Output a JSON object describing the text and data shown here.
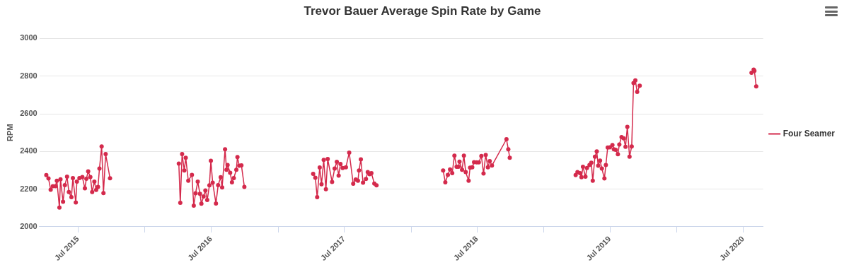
{
  "chart_data": {
    "type": "line",
    "title": "Trevor Bauer Average Spin Rate by Game",
    "ylabel": "RPM",
    "x": [
      "2015-04-05",
      "2015-04-11",
      "2015-04-17",
      "2015-04-23",
      "2015-04-30",
      "2015-05-04",
      "2015-05-11",
      "2015-05-14",
      "2015-05-21",
      "2015-05-26",
      "2015-06-01",
      "2015-06-06",
      "2015-06-13",
      "2015-06-17",
      "2015-06-25",
      "2015-06-28",
      "2015-07-05",
      "2015-07-13",
      "2015-07-20",
      "2015-07-24",
      "2015-07-29",
      "2015-08-04",
      "2015-08-09",
      "2015-08-15",
      "2015-08-20",
      "2015-08-25",
      "2015-08-29",
      "2015-09-04",
      "2015-09-09",
      "2015-09-15",
      "2015-09-27",
      "2016-01-01",
      "2016-04-03",
      "2016-04-07",
      "2016-04-12",
      "2016-04-18",
      "2016-04-22",
      "2016-04-29",
      "2016-05-09",
      "2016-05-14",
      "2016-05-19",
      "2016-05-25",
      "2016-05-31",
      "2016-06-04",
      "2016-06-10",
      "2016-06-15",
      "2016-06-20",
      "2016-06-26",
      "2016-06-30",
      "2016-07-05",
      "2016-07-14",
      "2016-07-20",
      "2016-07-27",
      "2016-07-31",
      "2016-08-08",
      "2016-08-12",
      "2016-08-15",
      "2016-08-22",
      "2016-08-27",
      "2016-09-01",
      "2016-09-08",
      "2016-09-11",
      "2016-09-16",
      "2016-09-22",
      "2016-09-30",
      "2017-01-01",
      "2017-04-07",
      "2017-04-13",
      "2017-04-18",
      "2017-04-25",
      "2017-04-30",
      "2017-05-06",
      "2017-05-12",
      "2017-05-17",
      "2017-05-29",
      "2017-06-05",
      "2017-06-11",
      "2017-06-16",
      "2017-06-21",
      "2017-06-27",
      "2017-07-06",
      "2017-07-15",
      "2017-07-26",
      "2017-08-02",
      "2017-08-08",
      "2017-08-11",
      "2017-08-16",
      "2017-08-22",
      "2017-08-30",
      "2017-09-04",
      "2017-09-09",
      "2017-09-14",
      "2017-09-22",
      "2017-09-28",
      "2018-01-01",
      "2018-03-30",
      "2018-04-05",
      "2018-04-12",
      "2018-04-18",
      "2018-04-24",
      "2018-04-30",
      "2018-05-06",
      "2018-05-11",
      "2018-05-14",
      "2018-05-21",
      "2018-05-26",
      "2018-05-31",
      "2018-06-08",
      "2018-06-12",
      "2018-06-18",
      "2018-06-23",
      "2018-06-30",
      "2018-07-06",
      "2018-07-13",
      "2018-07-19",
      "2018-07-25",
      "2018-07-31",
      "2018-08-05",
      "2018-08-11",
      "2018-09-20",
      "2018-09-25",
      "2018-09-29",
      "2019-01-01",
      "2019-03-29",
      "2019-04-03",
      "2019-04-10",
      "2019-04-14",
      "2019-04-18",
      "2019-04-25",
      "2019-04-29",
      "2019-05-06",
      "2019-05-11",
      "2019-05-15",
      "2019-05-21",
      "2019-05-26",
      "2019-05-30",
      "2019-06-04",
      "2019-06-09",
      "2019-06-16",
      "2019-06-20",
      "2019-06-25",
      "2019-07-01",
      "2019-07-08",
      "2019-07-12",
      "2019-07-17",
      "2019-07-23",
      "2019-07-27",
      "2019-08-02",
      "2019-08-08",
      "2019-08-13",
      "2019-08-18",
      "2019-08-24",
      "2019-08-30",
      "2019-09-04",
      "2019-09-09",
      "2019-09-14",
      "2019-09-21",
      "2020-01-01",
      "2020-07-24",
      "2020-07-30",
      "2020-08-01",
      "2020-08-06"
    ],
    "series": [
      {
        "name": "Four Seamer",
        "color": "#d42a4c",
        "values": [
          2275,
          2257,
          2197,
          2216,
          2216,
          2245,
          2102,
          2252,
          2133,
          2221,
          2266,
          2185,
          2157,
          2259,
          2129,
          2240,
          2259,
          2264,
          2204,
          2255,
          2294,
          2264,
          2185,
          2240,
          2196,
          2212,
          2309,
          2427,
          2179,
          2386,
          2258,
          null,
          2336,
          2127,
          2386,
          2299,
          2367,
          2245,
          2276,
          2112,
          2178,
          2240,
          2175,
          2123,
          2161,
          2193,
          2142,
          2220,
          2351,
          2234,
          2124,
          2221,
          2263,
          2209,
          2412,
          2303,
          2328,
          2287,
          2236,
          2259,
          2303,
          2370,
          2324,
          2326,
          2212,
          null,
          2281,
          2261,
          2157,
          2315,
          2226,
          2355,
          2200,
          2360,
          2238,
          2309,
          2345,
          2272,
          2334,
          2312,
          2316,
          2394,
          2229,
          2251,
          2245,
          2299,
          2358,
          2234,
          2254,
          2291,
          2279,
          2285,
          2230,
          2220,
          null,
          2299,
          2236,
          2276,
          2305,
          2285,
          2378,
          2319,
          2319,
          2346,
          2303,
          2378,
          2291,
          2245,
          2314,
          2316,
          2343,
          2342,
          2342,
          2376,
          2283,
          2382,
          2316,
          2349,
          2325,
          2465,
          2412,
          2367,
          null,
          2275,
          2291,
          2285,
          2263,
          2319,
          2266,
          2312,
          2328,
          2340,
          2245,
          2372,
          2400,
          2324,
          2352,
          2309,
          2257,
          2328,
          2421,
          2422,
          2434,
          2412,
          2409,
          2385,
          2437,
          2476,
          2470,
          2425,
          2531,
          2372,
          2427,
          2763,
          2777,
          2716,
          2749,
          null,
          2818,
          2835,
          2828,
          2745
        ]
      }
    ],
    "xlim": [
      "2015-03-17",
      "2020-08-25"
    ],
    "xticks": [
      {
        "value": "2015-07-01",
        "label": "Jul 2015"
      },
      {
        "value": "2016-01-01",
        "label": null
      },
      {
        "value": "2016-07-01",
        "label": "Jul 2016"
      },
      {
        "value": "2017-01-01",
        "label": null
      },
      {
        "value": "2017-07-01",
        "label": "Jul 2017"
      },
      {
        "value": "2018-01-01",
        "label": null
      },
      {
        "value": "2018-07-01",
        "label": "Jul 2018"
      },
      {
        "value": "2019-01-01",
        "label": null
      },
      {
        "value": "2019-07-01",
        "label": "Jul 2019"
      },
      {
        "value": "2020-01-01",
        "label": null
      },
      {
        "value": "2020-07-01",
        "label": "Jul 2020"
      }
    ],
    "ylim": [
      2000,
      3000
    ],
    "yticks": [
      2000,
      2200,
      2400,
      2600,
      2800,
      3000
    ],
    "grid": "y",
    "legend": "right",
    "marker": "circle",
    "line_style": "solid"
  }
}
